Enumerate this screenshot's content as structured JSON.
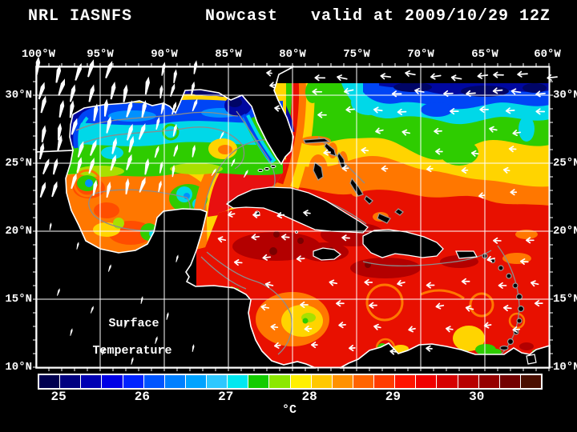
{
  "header": {
    "model": "NRL IASNFS",
    "product": "Nowcast",
    "valid": "valid at 2009/10/29 12Z"
  },
  "axes": {
    "lon": [
      "100°W",
      "95°W",
      "90°W",
      "85°W",
      "80°W",
      "75°W",
      "70°W",
      "65°W",
      "60°W"
    ],
    "lat": [
      "30°N",
      "25°N",
      "20°N",
      "15°N",
      "10°N"
    ]
  },
  "overlay": {
    "line1": "Surface",
    "line2": "Temperature"
  },
  "colorbar": {
    "unit": "°C",
    "ticks": [
      "25",
      "26",
      "27",
      "28",
      "29",
      "30"
    ],
    "colors": [
      "#00004F",
      "#000080",
      "#0000B3",
      "#0000E6",
      "#0023FF",
      "#0055FF",
      "#0080FF",
      "#00A3FF",
      "#2EC8FF",
      "#00E8F0",
      "#14CC00",
      "#8CE800",
      "#FFF000",
      "#FFC800",
      "#FF9100",
      "#FF6400",
      "#FF3C00",
      "#FF1400",
      "#F00000",
      "#D60000",
      "#B80000",
      "#960000",
      "#730000",
      "#4A0E00"
    ]
  }
}
